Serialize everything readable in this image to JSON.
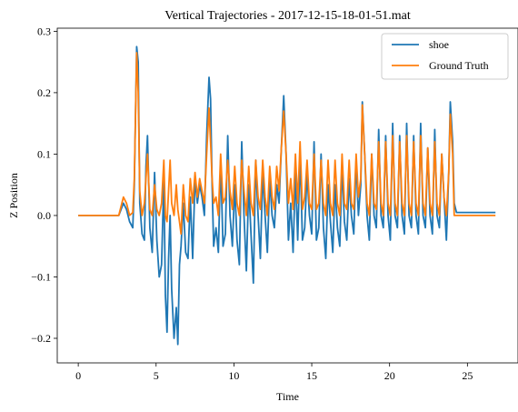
{
  "chart_data": {
    "type": "line",
    "title": "Vertical Trajectories - 2017-12-15-18-01-51.mat",
    "xlabel": "Time",
    "ylabel": "Z Position",
    "xlim": [
      -1.35,
      28.25
    ],
    "ylim": [
      -0.24,
      0.305
    ],
    "xticks": [
      0,
      5,
      10,
      15,
      20,
      25
    ],
    "xtick_labels": [
      "0",
      "5",
      "10",
      "15",
      "20",
      "25"
    ],
    "yticks": [
      -0.2,
      -0.1,
      0.0,
      0.1,
      0.2,
      0.3
    ],
    "ytick_labels": [
      "−0.2",
      "−0.1",
      "0.0",
      "0.1",
      "0.2",
      "0.3"
    ],
    "grid": false,
    "legend_position": "top-right",
    "series": [
      {
        "name": "shoe",
        "color": "#1f77b4",
        "x": [
          0,
          2.6,
          2.9,
          3.1,
          3.3,
          3.5,
          3.6,
          3.75,
          3.85,
          3.95,
          4.1,
          4.25,
          4.35,
          4.45,
          4.6,
          4.75,
          4.9,
          5.05,
          5.2,
          5.35,
          5.5,
          5.6,
          5.7,
          5.8,
          5.9,
          6.0,
          6.15,
          6.3,
          6.4,
          6.5,
          6.6,
          6.75,
          6.9,
          7.05,
          7.2,
          7.35,
          7.5,
          7.65,
          7.8,
          7.95,
          8.1,
          8.25,
          8.4,
          8.5,
          8.6,
          8.7,
          8.85,
          9.0,
          9.15,
          9.3,
          9.45,
          9.6,
          9.75,
          9.9,
          10.05,
          10.2,
          10.35,
          10.5,
          10.65,
          10.8,
          10.95,
          11.1,
          11.25,
          11.4,
          11.55,
          11.7,
          11.85,
          12.0,
          12.15,
          12.3,
          12.45,
          12.6,
          12.75,
          12.9,
          13.05,
          13.2,
          13.35,
          13.5,
          13.65,
          13.8,
          13.95,
          14.1,
          14.25,
          14.4,
          14.55,
          14.7,
          14.85,
          15.0,
          15.15,
          15.3,
          15.45,
          15.6,
          15.75,
          15.9,
          16.05,
          16.2,
          16.35,
          16.5,
          16.65,
          16.8,
          16.95,
          17.1,
          17.25,
          17.4,
          17.55,
          17.7,
          17.85,
          18.0,
          18.15,
          18.25,
          18.4,
          18.55,
          18.7,
          18.85,
          19.0,
          19.15,
          19.3,
          19.45,
          19.6,
          19.75,
          19.9,
          20.05,
          20.2,
          20.35,
          20.5,
          20.65,
          20.8,
          20.95,
          21.1,
          21.25,
          21.4,
          21.55,
          21.7,
          21.85,
          22.0,
          22.15,
          22.3,
          22.45,
          22.6,
          22.75,
          22.9,
          23.05,
          23.2,
          23.35,
          23.5,
          23.65,
          23.8,
          23.9,
          24.05,
          24.15,
          24.3,
          26.8
        ],
        "values": [
          0.0,
          0.0,
          0.02,
          0.01,
          -0.01,
          -0.02,
          0.05,
          0.275,
          0.25,
          0.02,
          -0.03,
          -0.04,
          0.08,
          0.13,
          -0.02,
          -0.06,
          0.07,
          -0.04,
          -0.1,
          -0.08,
          0.06,
          -0.13,
          -0.19,
          -0.07,
          0.0,
          -0.12,
          -0.2,
          -0.15,
          -0.21,
          -0.08,
          -0.05,
          0.02,
          -0.06,
          -0.07,
          0.03,
          -0.07,
          0.06,
          0.02,
          0.05,
          0.03,
          0.0,
          0.13,
          0.225,
          0.19,
          0.05,
          -0.05,
          -0.02,
          -0.06,
          0.09,
          -0.05,
          -0.03,
          0.13,
          0.0,
          -0.05,
          0.05,
          -0.04,
          -0.08,
          0.12,
          0.0,
          -0.09,
          0.05,
          -0.03,
          -0.11,
          0.09,
          0.0,
          -0.07,
          0.07,
          0.0,
          -0.06,
          0.06,
          0.0,
          -0.02,
          0.05,
          0.02,
          0.11,
          0.195,
          0.1,
          -0.04,
          0.02,
          -0.06,
          0.07,
          -0.04,
          0.1,
          -0.04,
          -0.02,
          0.07,
          0.0,
          -0.03,
          0.12,
          -0.04,
          -0.02,
          0.1,
          -0.02,
          -0.07,
          0.05,
          -0.01,
          -0.06,
          0.05,
          -0.02,
          -0.05,
          0.08,
          -0.01,
          -0.04,
          0.06,
          0.0,
          -0.03,
          0.09,
          0.0,
          0.05,
          0.185,
          0.1,
          0.0,
          -0.04,
          0.1,
          0.0,
          -0.02,
          0.14,
          0.0,
          -0.02,
          0.13,
          0.0,
          -0.04,
          0.15,
          0.0,
          -0.02,
          0.13,
          0.0,
          -0.03,
          0.15,
          0.0,
          -0.02,
          0.13,
          0.0,
          -0.03,
          0.15,
          0.0,
          -0.02,
          0.11,
          0.0,
          -0.03,
          0.14,
          0.0,
          -0.02,
          0.1,
          0.03,
          -0.04,
          0.07,
          0.185,
          0.12,
          0.02,
          0.005,
          0.005
        ]
      },
      {
        "name": "Ground Truth",
        "color": "#ff7f0e",
        "x": [
          0,
          2.6,
          2.9,
          3.1,
          3.3,
          3.5,
          3.6,
          3.75,
          3.85,
          3.95,
          4.1,
          4.25,
          4.35,
          4.45,
          4.6,
          4.75,
          4.9,
          5.05,
          5.2,
          5.35,
          5.5,
          5.6,
          5.7,
          5.8,
          5.9,
          6.0,
          6.15,
          6.3,
          6.4,
          6.5,
          6.6,
          6.75,
          6.9,
          7.05,
          7.2,
          7.35,
          7.5,
          7.65,
          7.8,
          7.95,
          8.1,
          8.25,
          8.4,
          8.5,
          8.6,
          8.7,
          8.85,
          9.0,
          9.15,
          9.3,
          9.45,
          9.6,
          9.75,
          9.9,
          10.05,
          10.2,
          10.35,
          10.5,
          10.65,
          10.8,
          10.95,
          11.1,
          11.25,
          11.4,
          11.55,
          11.7,
          11.85,
          12.0,
          12.15,
          12.3,
          12.45,
          12.6,
          12.75,
          12.9,
          13.05,
          13.2,
          13.35,
          13.5,
          13.65,
          13.8,
          13.95,
          14.1,
          14.25,
          14.4,
          14.55,
          14.7,
          14.85,
          15.0,
          15.15,
          15.3,
          15.45,
          15.6,
          15.75,
          15.9,
          16.05,
          16.2,
          16.35,
          16.5,
          16.65,
          16.8,
          16.95,
          17.1,
          17.25,
          17.4,
          17.55,
          17.7,
          17.85,
          18.0,
          18.15,
          18.25,
          18.4,
          18.55,
          18.7,
          18.85,
          19.0,
          19.15,
          19.3,
          19.45,
          19.6,
          19.75,
          19.9,
          20.05,
          20.2,
          20.35,
          20.5,
          20.65,
          20.8,
          20.95,
          21.1,
          21.25,
          21.4,
          21.55,
          21.7,
          21.85,
          22.0,
          22.15,
          22.3,
          22.45,
          22.6,
          22.75,
          22.9,
          23.05,
          23.2,
          23.35,
          23.5,
          23.65,
          23.8,
          23.9,
          24.05,
          24.15,
          24.3,
          26.8
        ],
        "values": [
          0.0,
          0.0,
          0.03,
          0.02,
          0.0,
          0.005,
          0.06,
          0.265,
          0.2,
          0.04,
          0.0,
          0.02,
          0.06,
          0.1,
          0.01,
          0.0,
          0.05,
          0.01,
          0.0,
          0.02,
          0.09,
          0.0,
          -0.01,
          0.04,
          0.09,
          0.02,
          0.0,
          0.05,
          0.01,
          -0.01,
          -0.03,
          0.05,
          0.0,
          -0.01,
          0.06,
          0.02,
          0.07,
          0.03,
          0.06,
          0.04,
          0.02,
          0.1,
          0.175,
          0.12,
          0.06,
          0.02,
          0.03,
          0.0,
          0.1,
          0.02,
          0.03,
          0.09,
          0.04,
          0.01,
          0.08,
          0.02,
          0.0,
          0.09,
          0.04,
          0.0,
          0.08,
          0.02,
          0.0,
          0.09,
          0.03,
          0.01,
          0.09,
          0.03,
          0.0,
          0.08,
          0.03,
          0.01,
          0.08,
          0.04,
          0.11,
          0.17,
          0.1,
          0.02,
          0.06,
          0.01,
          0.1,
          0.02,
          0.12,
          0.01,
          0.03,
          0.09,
          0.02,
          0.01,
          0.1,
          0.01,
          0.02,
          0.09,
          0.02,
          0.0,
          0.09,
          0.02,
          0.0,
          0.09,
          0.02,
          0.0,
          0.1,
          0.02,
          0.01,
          0.09,
          0.02,
          0.01,
          0.1,
          0.03,
          0.06,
          0.18,
          0.1,
          0.02,
          0.0,
          0.1,
          0.02,
          0.01,
          0.12,
          0.02,
          0.0,
          0.12,
          0.02,
          0.0,
          0.13,
          0.02,
          0.0,
          0.12,
          0.02,
          0.0,
          0.13,
          0.02,
          0.0,
          0.12,
          0.02,
          0.0,
          0.13,
          0.02,
          0.0,
          0.11,
          0.02,
          0.0,
          0.12,
          0.02,
          0.0,
          0.1,
          0.03,
          0.0,
          0.07,
          0.165,
          0.1,
          0.0,
          0.0,
          0.0
        ]
      }
    ]
  }
}
